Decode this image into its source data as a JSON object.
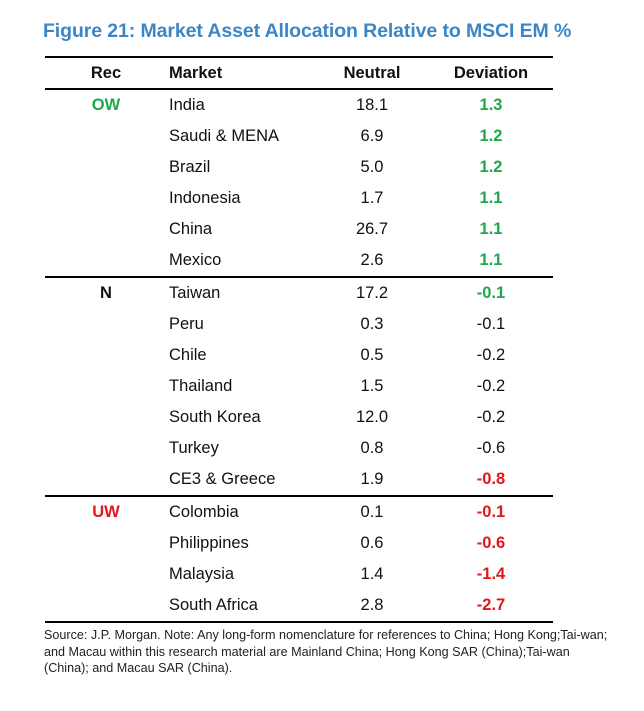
{
  "figure": {
    "title": "Figure 21: Market Asset Allocation Relative to MSCI EM %",
    "title_color": "#3d86c6"
  },
  "table": {
    "headers": {
      "rec": "Rec",
      "market": "Market",
      "neutral": "Neutral",
      "deviation": "Deviation"
    },
    "colors": {
      "overweight": "#1fa84a",
      "underweight": "#e2171c",
      "neutral": "#111111"
    },
    "groups": [
      {
        "rec": "OW",
        "rec_color": "#1fa84a",
        "rows": [
          {
            "market": "India",
            "neutral": "18.1",
            "deviation": "1.3",
            "dev_style": "green"
          },
          {
            "market": "Saudi & MENA",
            "neutral": "6.9",
            "deviation": "1.2",
            "dev_style": "green"
          },
          {
            "market": "Brazil",
            "neutral": "5.0",
            "deviation": "1.2",
            "dev_style": "green"
          },
          {
            "market": "Indonesia",
            "neutral": "1.7",
            "deviation": "1.1",
            "dev_style": "green"
          },
          {
            "market": "China",
            "neutral": "26.7",
            "deviation": "1.1",
            "dev_style": "green"
          },
          {
            "market": "Mexico",
            "neutral": "2.6",
            "deviation": "1.1",
            "dev_style": "green"
          }
        ]
      },
      {
        "rec": "N",
        "rec_color": "#111111",
        "rows": [
          {
            "market": "Taiwan",
            "neutral": "17.2",
            "deviation": "-0.1",
            "dev_style": "green"
          },
          {
            "market": "Peru",
            "neutral": "0.3",
            "deviation": "-0.1",
            "dev_style": "plain"
          },
          {
            "market": "Chile",
            "neutral": "0.5",
            "deviation": "-0.2",
            "dev_style": "plain"
          },
          {
            "market": "Thailand",
            "neutral": "1.5",
            "deviation": "-0.2",
            "dev_style": "plain"
          },
          {
            "market": "South Korea",
            "neutral": "12.0",
            "deviation": "-0.2",
            "dev_style": "plain"
          },
          {
            "market": "Turkey",
            "neutral": "0.8",
            "deviation": "-0.6",
            "dev_style": "plain"
          },
          {
            "market": "CE3 & Greece",
            "neutral": "1.9",
            "deviation": "-0.8",
            "dev_style": "red"
          }
        ]
      },
      {
        "rec": "UW",
        "rec_color": "#e2171c",
        "rows": [
          {
            "market": "Colombia",
            "neutral": "0.1",
            "deviation": "-0.1",
            "dev_style": "red"
          },
          {
            "market": "Philippines",
            "neutral": "0.6",
            "deviation": "-0.6",
            "dev_style": "red"
          },
          {
            "market": "Malaysia",
            "neutral": "1.4",
            "deviation": "-1.4",
            "dev_style": "red"
          },
          {
            "market": "South Africa",
            "neutral": "2.8",
            "deviation": "-2.7",
            "dev_style": "red"
          }
        ]
      }
    ]
  },
  "source_note": "Source: J.P. Morgan. Note: Any long-form nomenclature for references to China; Hong Kong;Tai-wan; and Macau within this research material are Mainland China; Hong Kong SAR (China);Tai-wan (China); and Macau SAR (China)."
}
